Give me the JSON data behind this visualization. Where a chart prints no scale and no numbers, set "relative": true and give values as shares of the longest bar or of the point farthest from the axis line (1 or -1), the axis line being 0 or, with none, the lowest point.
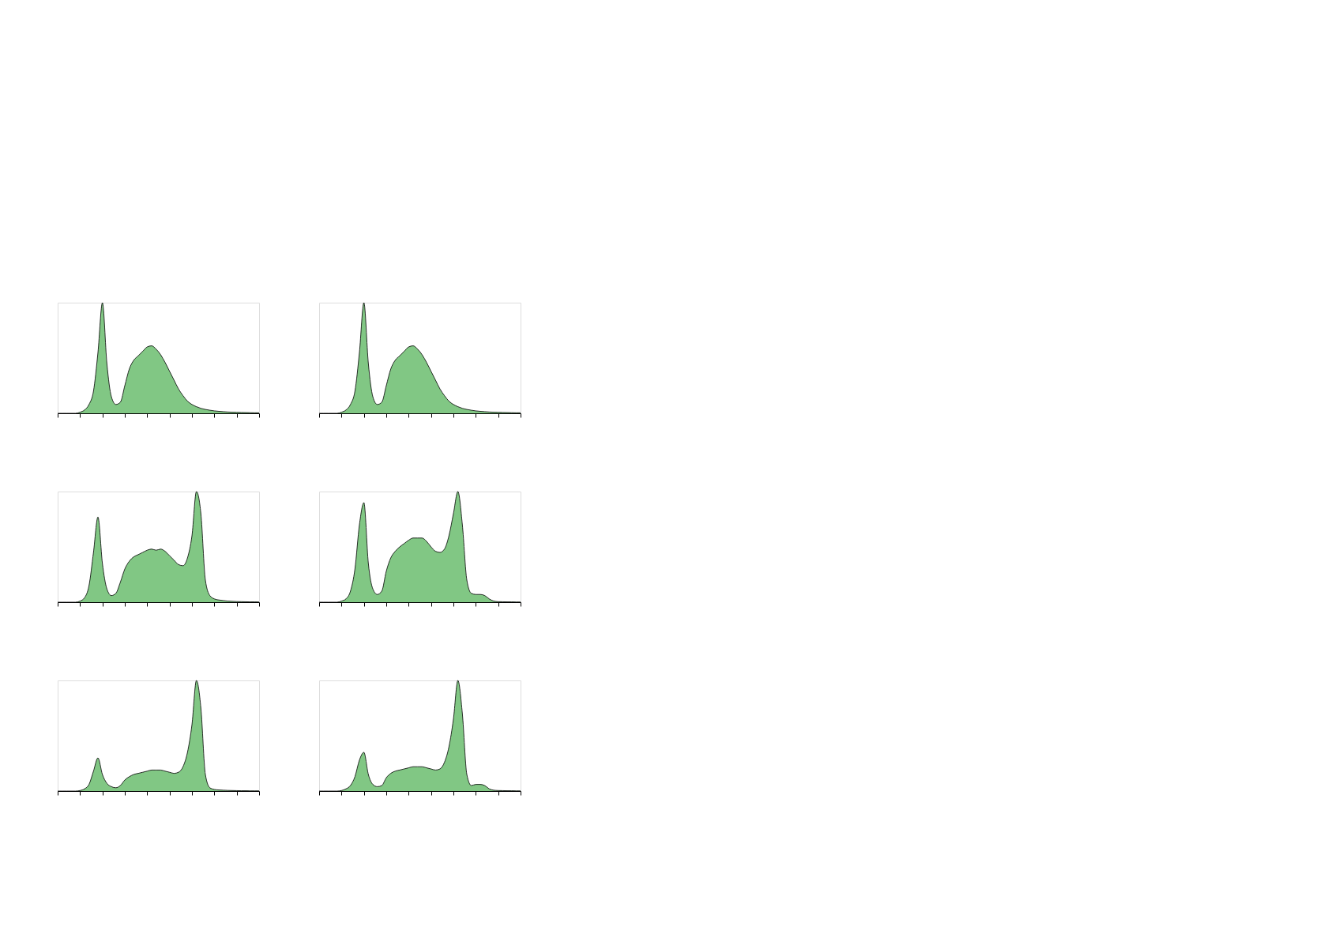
{
  "chart_data": [
    {
      "type": "area",
      "relative": true,
      "categories": [
        null,
        null,
        null,
        null,
        null,
        null,
        null,
        null,
        null,
        null,
        null,
        null,
        null,
        null,
        null,
        null,
        null,
        null,
        null,
        null,
        null,
        null,
        null,
        null,
        null,
        null,
        null,
        null,
        null,
        null,
        null,
        null,
        null,
        null,
        null,
        null,
        null,
        null,
        null,
        null,
        null,
        null,
        null,
        null,
        null,
        null
      ],
      "series": [
        {
          "color": "#4caf50",
          "values": [
            0,
            0,
            0,
            0,
            0,
            0.01,
            0.03,
            0.08,
            0.2,
            0.55,
            1.0,
            0.45,
            0.15,
            0.08,
            0.1,
            0.25,
            0.4,
            0.48,
            0.52,
            0.56,
            0.6,
            0.61,
            0.58,
            0.53,
            0.46,
            0.38,
            0.3,
            0.22,
            0.16,
            0.11,
            0.08,
            0.06,
            0.045,
            0.035,
            0.028,
            0.022,
            0.018,
            0.015,
            0.012,
            0.01,
            0.009,
            0.008,
            0.007,
            0.006,
            0.005,
            0.005
          ]
        }
      ],
      "grid": false
    },
    {
      "type": "area",
      "relative": true,
      "categories": [
        null,
        null,
        null,
        null,
        null,
        null,
        null,
        null,
        null,
        null,
        null,
        null,
        null,
        null,
        null,
        null,
        null,
        null,
        null,
        null,
        null,
        null,
        null,
        null,
        null,
        null,
        null,
        null,
        null,
        null,
        null,
        null,
        null,
        null,
        null,
        null,
        null,
        null,
        null,
        null,
        null,
        null,
        null,
        null,
        null,
        null
      ],
      "series": [
        {
          "color": "#4caf50",
          "values": [
            0,
            0,
            0,
            0,
            0,
            0.01,
            0.03,
            0.08,
            0.2,
            0.55,
            1.0,
            0.45,
            0.15,
            0.08,
            0.1,
            0.25,
            0.4,
            0.48,
            0.52,
            0.56,
            0.6,
            0.61,
            0.58,
            0.53,
            0.46,
            0.38,
            0.3,
            0.22,
            0.16,
            0.11,
            0.08,
            0.06,
            0.045,
            0.035,
            0.028,
            0.022,
            0.018,
            0.015,
            0.012,
            0.01,
            0.009,
            0.008,
            0.007,
            0.006,
            0.005,
            0.005
          ]
        }
      ],
      "grid": false
    },
    {
      "type": "area",
      "relative": true,
      "categories": [
        null,
        null,
        null,
        null,
        null,
        null,
        null,
        null,
        null,
        null,
        null,
        null,
        null,
        null,
        null,
        null,
        null,
        null,
        null,
        null,
        null,
        null,
        null,
        null,
        null,
        null,
        null,
        null,
        null,
        null,
        null,
        null,
        null,
        null,
        null,
        null,
        null,
        null,
        null,
        null,
        null,
        null,
        null,
        null,
        null,
        null
      ],
      "series": [
        {
          "color": "#4caf50",
          "values": [
            0,
            0,
            0,
            0,
            0,
            0.01,
            0.04,
            0.15,
            0.45,
            0.77,
            0.35,
            0.12,
            0.06,
            0.08,
            0.18,
            0.3,
            0.37,
            0.41,
            0.43,
            0.45,
            0.47,
            0.48,
            0.47,
            0.48,
            0.46,
            0.42,
            0.38,
            0.34,
            0.33,
            0.4,
            0.6,
            1.0,
            0.8,
            0.2,
            0.06,
            0.03,
            0.02,
            0.015,
            0.01,
            0.008,
            0.006,
            0.005,
            0.004,
            0.003,
            0.003,
            0.002
          ]
        }
      ],
      "grid": false
    },
    {
      "type": "area",
      "relative": true,
      "categories": [
        null,
        null,
        null,
        null,
        null,
        null,
        null,
        null,
        null,
        null,
        null,
        null,
        null,
        null,
        null,
        null,
        null,
        null,
        null,
        null,
        null,
        null,
        null,
        null,
        null,
        null,
        null,
        null,
        null,
        null,
        null,
        null,
        null,
        null,
        null,
        null,
        null,
        null,
        null,
        null,
        null,
        null,
        null,
        null,
        null,
        null
      ],
      "series": [
        {
          "color": "#4caf50",
          "values": [
            0,
            0,
            0,
            0,
            0,
            0.01,
            0.03,
            0.1,
            0.3,
            0.7,
            0.9,
            0.35,
            0.12,
            0.07,
            0.1,
            0.28,
            0.4,
            0.46,
            0.5,
            0.53,
            0.56,
            0.58,
            0.58,
            0.58,
            0.55,
            0.5,
            0.46,
            0.45,
            0.48,
            0.6,
            0.8,
            1.0,
            0.7,
            0.2,
            0.08,
            0.07,
            0.07,
            0.06,
            0.03,
            0.01,
            0.005,
            0.004,
            0.003,
            0.003,
            0.002,
            0.002
          ]
        }
      ],
      "grid": false
    },
    {
      "type": "area",
      "relative": true,
      "categories": [
        null,
        null,
        null,
        null,
        null,
        null,
        null,
        null,
        null,
        null,
        null,
        null,
        null,
        null,
        null,
        null,
        null,
        null,
        null,
        null,
        null,
        null,
        null,
        null,
        null,
        null,
        null,
        null,
        null,
        null,
        null,
        null,
        null,
        null,
        null,
        null,
        null,
        null,
        null,
        null,
        null,
        null,
        null,
        null,
        null,
        null
      ],
      "series": [
        {
          "color": "#4caf50",
          "values": [
            0,
            0,
            0,
            0,
            0,
            0.005,
            0.02,
            0.06,
            0.18,
            0.3,
            0.15,
            0.07,
            0.04,
            0.03,
            0.05,
            0.1,
            0.13,
            0.15,
            0.16,
            0.17,
            0.18,
            0.19,
            0.19,
            0.19,
            0.18,
            0.17,
            0.16,
            0.17,
            0.22,
            0.35,
            0.6,
            1.0,
            0.75,
            0.15,
            0.03,
            0.015,
            0.01,
            0.008,
            0.006,
            0.005,
            0.004,
            0.003,
            0.003,
            0.002,
            0.002,
            0.002
          ]
        }
      ],
      "grid": false
    },
    {
      "type": "area",
      "relative": true,
      "categories": [
        null,
        null,
        null,
        null,
        null,
        null,
        null,
        null,
        null,
        null,
        null,
        null,
        null,
        null,
        null,
        null,
        null,
        null,
        null,
        null,
        null,
        null,
        null,
        null,
        null,
        null,
        null,
        null,
        null,
        null,
        null,
        null,
        null,
        null,
        null,
        null,
        null,
        null,
        null,
        null,
        null,
        null,
        null,
        null,
        null,
        null
      ],
      "series": [
        {
          "color": "#4caf50",
          "values": [
            0,
            0,
            0,
            0,
            0,
            0.005,
            0.02,
            0.05,
            0.13,
            0.28,
            0.35,
            0.15,
            0.06,
            0.04,
            0.05,
            0.12,
            0.16,
            0.18,
            0.19,
            0.2,
            0.21,
            0.22,
            0.22,
            0.22,
            0.21,
            0.2,
            0.19,
            0.2,
            0.26,
            0.4,
            0.65,
            1.0,
            0.7,
            0.15,
            0.05,
            0.06,
            0.06,
            0.05,
            0.02,
            0.008,
            0.005,
            0.004,
            0.003,
            0.003,
            0.002,
            0.002
          ]
        }
      ],
      "grid": false
    }
  ]
}
